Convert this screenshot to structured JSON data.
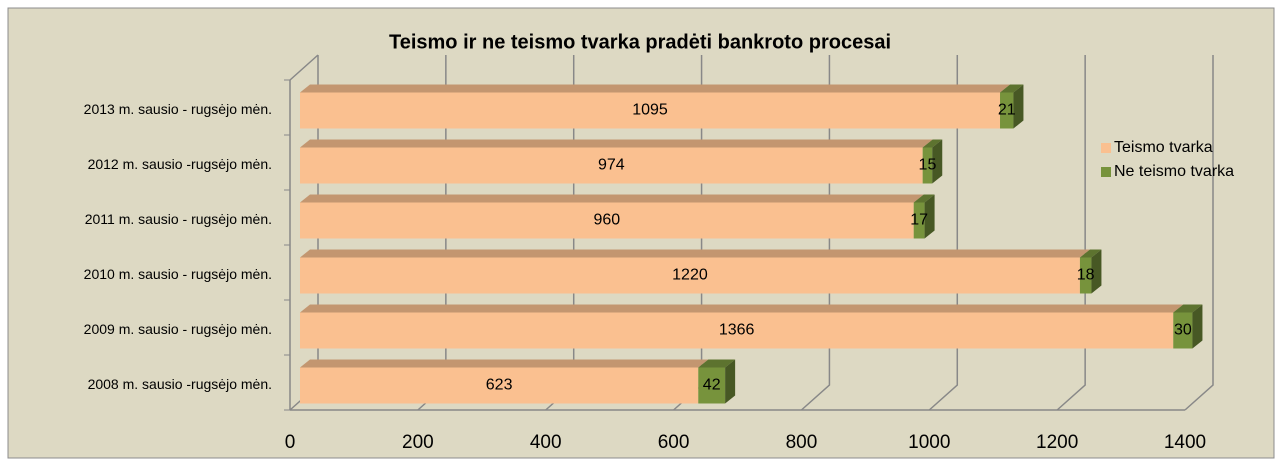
{
  "chart_data": {
    "type": "bar3d_stacked_horizontal",
    "title": "Teismo ir ne teismo tvarka pradėti bankroto procesai",
    "categories": [
      "2013 m. sausio - rugsėjo mėn.",
      "2012 m. sausio -rugsėjo mėn.",
      "2011 m. sausio - rugsėjo mėn.",
      "2010 m. sausio - rugsėjo mėn.",
      "2009 m. sausio - rugsėjo mėn.",
      "2008 m. sausio -rugsėjo mėn."
    ],
    "series": [
      {
        "name": "Teismo tvarka",
        "color": "#fac090",
        "values": [
          1095,
          974,
          960,
          1220,
          1366,
          623
        ]
      },
      {
        "name": "Ne teismo tvarka",
        "color": "#77933c",
        "values": [
          21,
          15,
          17,
          18,
          30,
          42
        ]
      }
    ],
    "xlim": [
      0,
      1400
    ],
    "xticks": [
      0,
      200,
      400,
      600,
      800,
      1000,
      1200,
      1400
    ],
    "grid": true,
    "legend": "right"
  }
}
